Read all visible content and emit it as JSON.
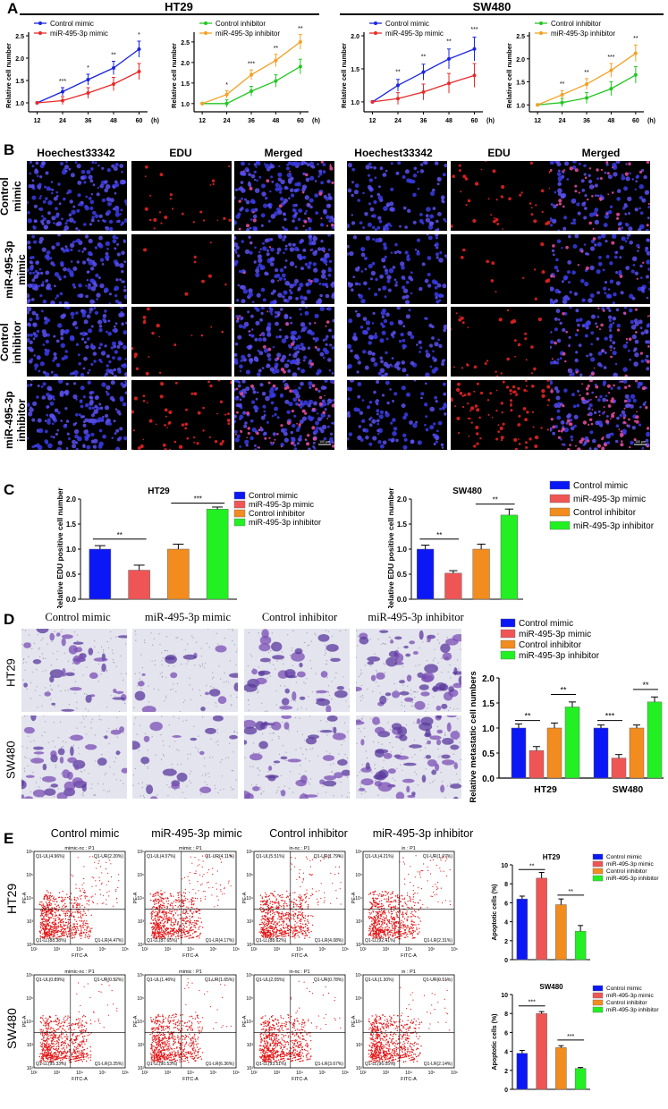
{
  "panels": {
    "A": "A",
    "B": "B",
    "C": "C",
    "D": "D",
    "E": "E"
  },
  "header": {
    "ht29": "HT29",
    "sw480": "SW480"
  },
  "growth_charts": {
    "ylabel": "Relative cell number",
    "x_unit": "(h)",
    "x": [
      12,
      24,
      36,
      48,
      60
    ],
    "charts": [
      {
        "legend": [
          "Control mimic",
          "miR-495-3p mimic"
        ],
        "colors": [
          "#1a24e0",
          "#e82a2a"
        ],
        "ylim": [
          0.8,
          2.5
        ],
        "yticks": [
          "1.0",
          "1.5",
          "2.0",
          "2.5"
        ],
        "ytickvals": [
          1.0,
          1.5,
          2.0,
          2.5
        ],
        "series": [
          [
            1.0,
            1.25,
            1.52,
            1.78,
            2.2
          ],
          [
            1.0,
            1.05,
            1.22,
            1.42,
            1.7
          ]
        ],
        "stars": [
          "",
          "***",
          "*",
          "**",
          "*"
        ]
      },
      {
        "legend": [
          "Control inhibitor",
          "miR-495-3p inhibitor"
        ],
        "colors": [
          "#22c722",
          "#f4a024"
        ],
        "ylim": [
          0.8,
          2.65
        ],
        "yticks": [
          "1.0",
          "1.5",
          "2.0",
          "2.5"
        ],
        "ytickvals": [
          1.0,
          1.5,
          2.0,
          2.5
        ],
        "series": [
          [
            1.0,
            1.0,
            1.3,
            1.55,
            1.9
          ],
          [
            1.0,
            1.22,
            1.7,
            2.05,
            2.5
          ]
        ],
        "stars": [
          "",
          "*",
          "***",
          "**",
          "**"
        ]
      },
      {
        "legend": [
          "Control mimic",
          "miR-495-3p mimic"
        ],
        "colors": [
          "#1a24e0",
          "#e82a2a"
        ],
        "ylim": [
          0.85,
          2.0
        ],
        "yticks": [
          "1.0",
          "1.5",
          "2.0"
        ],
        "ytickvals": [
          1.0,
          1.5,
          2.0
        ],
        "series": [
          [
            1.0,
            1.25,
            1.45,
            1.65,
            1.8
          ],
          [
            1.0,
            1.05,
            1.15,
            1.28,
            1.4
          ]
        ],
        "stars": [
          "",
          "**",
          "**",
          "**",
          "***"
        ]
      },
      {
        "legend": [
          "Control inhibitor",
          "miR-495-3p inhibitor"
        ],
        "colors": [
          "#22c722",
          "#f4a024"
        ],
        "ylim": [
          0.85,
          2.5
        ],
        "yticks": [
          "1.0",
          "1.5",
          "2.0",
          "2.5"
        ],
        "ytickvals": [
          1.0,
          1.5,
          2.0,
          2.5
        ],
        "series": [
          [
            1.0,
            1.05,
            1.15,
            1.35,
            1.65
          ],
          [
            1.0,
            1.22,
            1.45,
            1.75,
            2.12
          ]
        ],
        "stars": [
          "",
          "**",
          "**",
          "***",
          "**"
        ]
      }
    ]
  },
  "edu": {
    "columns": [
      "Hoechest33342",
      "EDU",
      "Merged",
      "Hoechest33342",
      "EDU",
      "Merged"
    ],
    "rows": [
      "Control mimic",
      "miR-495-3p mimic",
      "Control inhibitor",
      "miR-495-3p inhibitor"
    ],
    "scale_label": "100 µm"
  },
  "chart_data": [
    {
      "type": "bar",
      "title": "HT29",
      "ylabel": "Relative EDU positive cell number",
      "categories": [
        "Control mimic",
        "miR-495-3p mimic",
        "Control inhibitor",
        "miR-495-3p inhibitor"
      ],
      "values": [
        1.0,
        0.58,
        1.0,
        1.8
      ],
      "errors": [
        0.07,
        0.1,
        0.1,
        0.04
      ],
      "ylim": [
        0,
        2.0
      ],
      "yticks": [
        "0.0",
        "0.5",
        "1.0",
        "1.5",
        "2.0"
      ],
      "colors": [
        "#0b17f5",
        "#f05555",
        "#f28c1e",
        "#22f022"
      ],
      "sig": [
        {
          "from": 0,
          "to": 1,
          "label": "**",
          "y": 1.2
        },
        {
          "from": 2,
          "to": 3,
          "label": "***",
          "y": 1.92
        }
      ]
    },
    {
      "type": "bar",
      "title": "SW480",
      "ylabel": "Relative EDU positive cell number",
      "categories": [
        "Control mimic",
        "miR-495-3p mimic",
        "Control inhibitor",
        "miR-495-3p inhibitor"
      ],
      "values": [
        1.0,
        0.52,
        1.0,
        1.68
      ],
      "errors": [
        0.08,
        0.05,
        0.1,
        0.12
      ],
      "ylim": [
        0,
        2.0
      ],
      "yticks": [
        "0.0",
        "0.5",
        "1.0",
        "1.5",
        "2.0"
      ],
      "colors": [
        "#0b17f5",
        "#f05555",
        "#f28c1e",
        "#22f022"
      ],
      "sig": [
        {
          "from": 0,
          "to": 1,
          "label": "**",
          "y": 1.2
        },
        {
          "from": 2,
          "to": 3,
          "label": "**",
          "y": 1.9
        }
      ]
    },
    {
      "type": "bar",
      "ylabel": "Relative  metastatic cell numbers",
      "categories": [
        "HT29",
        "SW480"
      ],
      "series": [
        {
          "name": "Control mimic",
          "values": [
            1.0,
            1.0
          ],
          "errors": [
            0.08,
            0.06
          ]
        },
        {
          "name": "miR-495-3p mimic",
          "values": [
            0.55,
            0.4
          ],
          "errors": [
            0.08,
            0.07
          ]
        },
        {
          "name": "Control inhibitor",
          "values": [
            1.0,
            1.0
          ],
          "errors": [
            0.1,
            0.06
          ]
        },
        {
          "name": "miR-495-3p inhibitor",
          "values": [
            1.42,
            1.52
          ],
          "errors": [
            0.1,
            0.1
          ]
        }
      ],
      "ylim": [
        0,
        2.0
      ],
      "yticks": [
        "0.0",
        "0.5",
        "1.0",
        "1.5",
        "2.0"
      ],
      "colors": [
        "#0b17f5",
        "#f05555",
        "#f28c1e",
        "#22f022"
      ],
      "sig": [
        [
          "**",
          "**"
        ],
        [
          "***",
          "**"
        ]
      ]
    },
    {
      "type": "bar",
      "title": "HT29",
      "ylabel": "Apoptotic cells (%)",
      "categories": [
        "Control mimic",
        "miR-495-3p mimic",
        "Control inhibitor",
        "miR-495-3p inhibitor"
      ],
      "values": [
        6.4,
        8.6,
        5.8,
        3.0
      ],
      "errors": [
        0.3,
        0.6,
        0.6,
        0.6
      ],
      "ylim": [
        0,
        10
      ],
      "yticks": [
        "0",
        "2",
        "4",
        "6",
        "8",
        "10"
      ],
      "colors": [
        "#0b17f5",
        "#f05555",
        "#f28c1e",
        "#22f022"
      ],
      "sig": [
        {
          "from": 0,
          "to": 1,
          "label": "**",
          "y": 9.5
        },
        {
          "from": 2,
          "to": 3,
          "label": "**",
          "y": 6.8
        }
      ]
    },
    {
      "type": "bar",
      "title": "SW480",
      "ylabel": "Apoptotic cells (%)",
      "categories": [
        "Control mimic",
        "miR-495-3p mimic",
        "Control inhibitor",
        "miR-495-3p inhibitor"
      ],
      "values": [
        3.8,
        8.0,
        4.4,
        2.2
      ],
      "errors": [
        0.3,
        0.2,
        0.2,
        0.1
      ],
      "ylim": [
        0,
        10
      ],
      "yticks": [
        "0",
        "2",
        "4",
        "6",
        "8",
        "10"
      ],
      "colors": [
        "#0b17f5",
        "#f05555",
        "#f28c1e",
        "#22f022"
      ],
      "sig": [
        {
          "from": 0,
          "to": 1,
          "label": "***",
          "y": 8.8
        },
        {
          "from": 2,
          "to": 3,
          "label": "***",
          "y": 5.2
        }
      ]
    }
  ],
  "transwell": {
    "columns": [
      "Control mimic",
      "miR-495-3p mimic",
      "Control inhibitor",
      "miR-495-3p inhibitor"
    ],
    "rows": [
      "HT29",
      "SW480"
    ]
  },
  "flow": {
    "columns": [
      "Control mimic",
      "miR-495-3p mimic",
      "Control inhibitor",
      "miR-495-3p inhibitor"
    ],
    "rows": [
      "HT29",
      "SW480"
    ],
    "plot_titles": [
      [
        "mimic-nc : P1",
        "mimic : P1",
        "in-nc : P1",
        "in : P1"
      ],
      [
        "mimic-nc : P1",
        "mimic : P1",
        "in-nc : P1",
        "in : P1"
      ]
    ],
    "xlabel": "FITC-A",
    "ylabel": "PE-A",
    "xticks": [
      "10²",
      "10³",
      "10⁴",
      "10⁵",
      "10⁶"
    ],
    "yticks": [
      "10²",
      "10³",
      "10⁴",
      "10⁵",
      "10⁶"
    ],
    "quads": [
      [
        [
          "Q1-UL(4.96%)",
          "Q1-UR(2.20%)",
          "Q1-LL(88.38%)",
          "Q1-LR(4.47%)"
        ],
        [
          "Q1-UL(4.07%)",
          "Q1-UR(4.11%)",
          "Q1-LL(87.65%)",
          "Q1-LR(4.17%)"
        ],
        [
          "Q1-UL(5.51%)",
          "Q1-UR(1.79%)",
          "Q1-LL(88.62%)",
          "Q1-LR(4.08%)"
        ],
        [
          "Q1-UL(4.21%)",
          "Q1-UR(1.07%)",
          "Q1-LL(92.41%)",
          "Q1-LR(2.31%)"
        ]
      ],
      [
        [
          "Q1-UL(0.89%)",
          "Q1-UR(0.52%)",
          "Q1-LL(95.33%)",
          "Q1-LR(3.25%)"
        ],
        [
          "Q1-UL(1.46%)",
          "Q1-UR(1.65%)",
          "Q1-LL(90.53%)",
          "Q1-LR(6.36%)"
        ],
        [
          "Q1-UL(2.05%)",
          "Q1-UR(0.78%)",
          "Q1-LL(93.51%)",
          "Q1-LR(3.67%)"
        ],
        [
          "Q1-UL(1.30%)",
          "Q1-UR(0.51%)",
          "Q1-LL(96.05%)",
          "Q1-LR(2.14%)"
        ]
      ]
    ]
  }
}
